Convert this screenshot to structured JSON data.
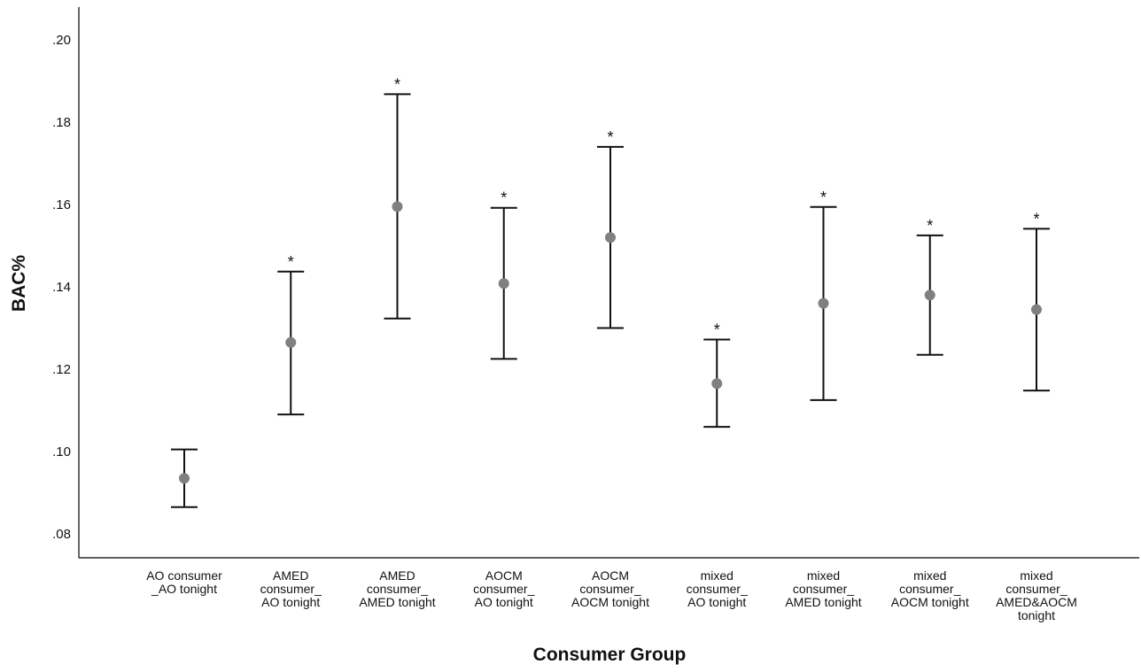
{
  "chart_data": {
    "type": "errorbar",
    "xlabel": "Consumer Group",
    "ylabel": "BAC%",
    "ylim": [
      0.075,
      0.205
    ],
    "yticks": [
      ".08",
      ".10",
      ".12",
      ".14",
      ".16",
      ".18",
      ".20"
    ],
    "ytick_values": [
      0.08,
      0.1,
      0.12,
      0.14,
      0.16,
      0.18,
      0.2
    ],
    "grid": false,
    "colors": {
      "point": "#808080",
      "bar": "#111111",
      "axis": "#000000"
    },
    "categories": [
      [
        "AO consumer",
        "_AO tonight"
      ],
      [
        "AMED",
        "consumer_",
        "AO tonight"
      ],
      [
        "AMED",
        "consumer_",
        "AMED tonight"
      ],
      [
        "AOCM",
        "consumer_",
        "AO tonight"
      ],
      [
        "AOCM",
        "consumer_",
        "AOCM tonight"
      ],
      [
        "mixed",
        "consumer_",
        "AO tonight"
      ],
      [
        "mixed",
        "consumer_",
        "AMED tonight"
      ],
      [
        "mixed",
        "consumer_",
        "AOCM tonight"
      ],
      [
        "mixed",
        "consumer_",
        "AMED&AOCM",
        "tonight"
      ]
    ],
    "means": [
      0.0935,
      0.1265,
      0.1595,
      0.1408,
      0.152,
      0.1165,
      0.136,
      0.138,
      0.1345
    ],
    "lower": [
      0.0865,
      0.109,
      0.1323,
      0.1225,
      0.13,
      0.106,
      0.1125,
      0.1235,
      0.1148
    ],
    "upper": [
      0.1005,
      0.1437,
      0.1868,
      0.1592,
      0.174,
      0.1272,
      0.1594,
      0.1525,
      0.1541
    ],
    "significant": [
      false,
      true,
      true,
      true,
      true,
      true,
      true,
      true,
      true
    ],
    "annotation_symbol": "*"
  }
}
